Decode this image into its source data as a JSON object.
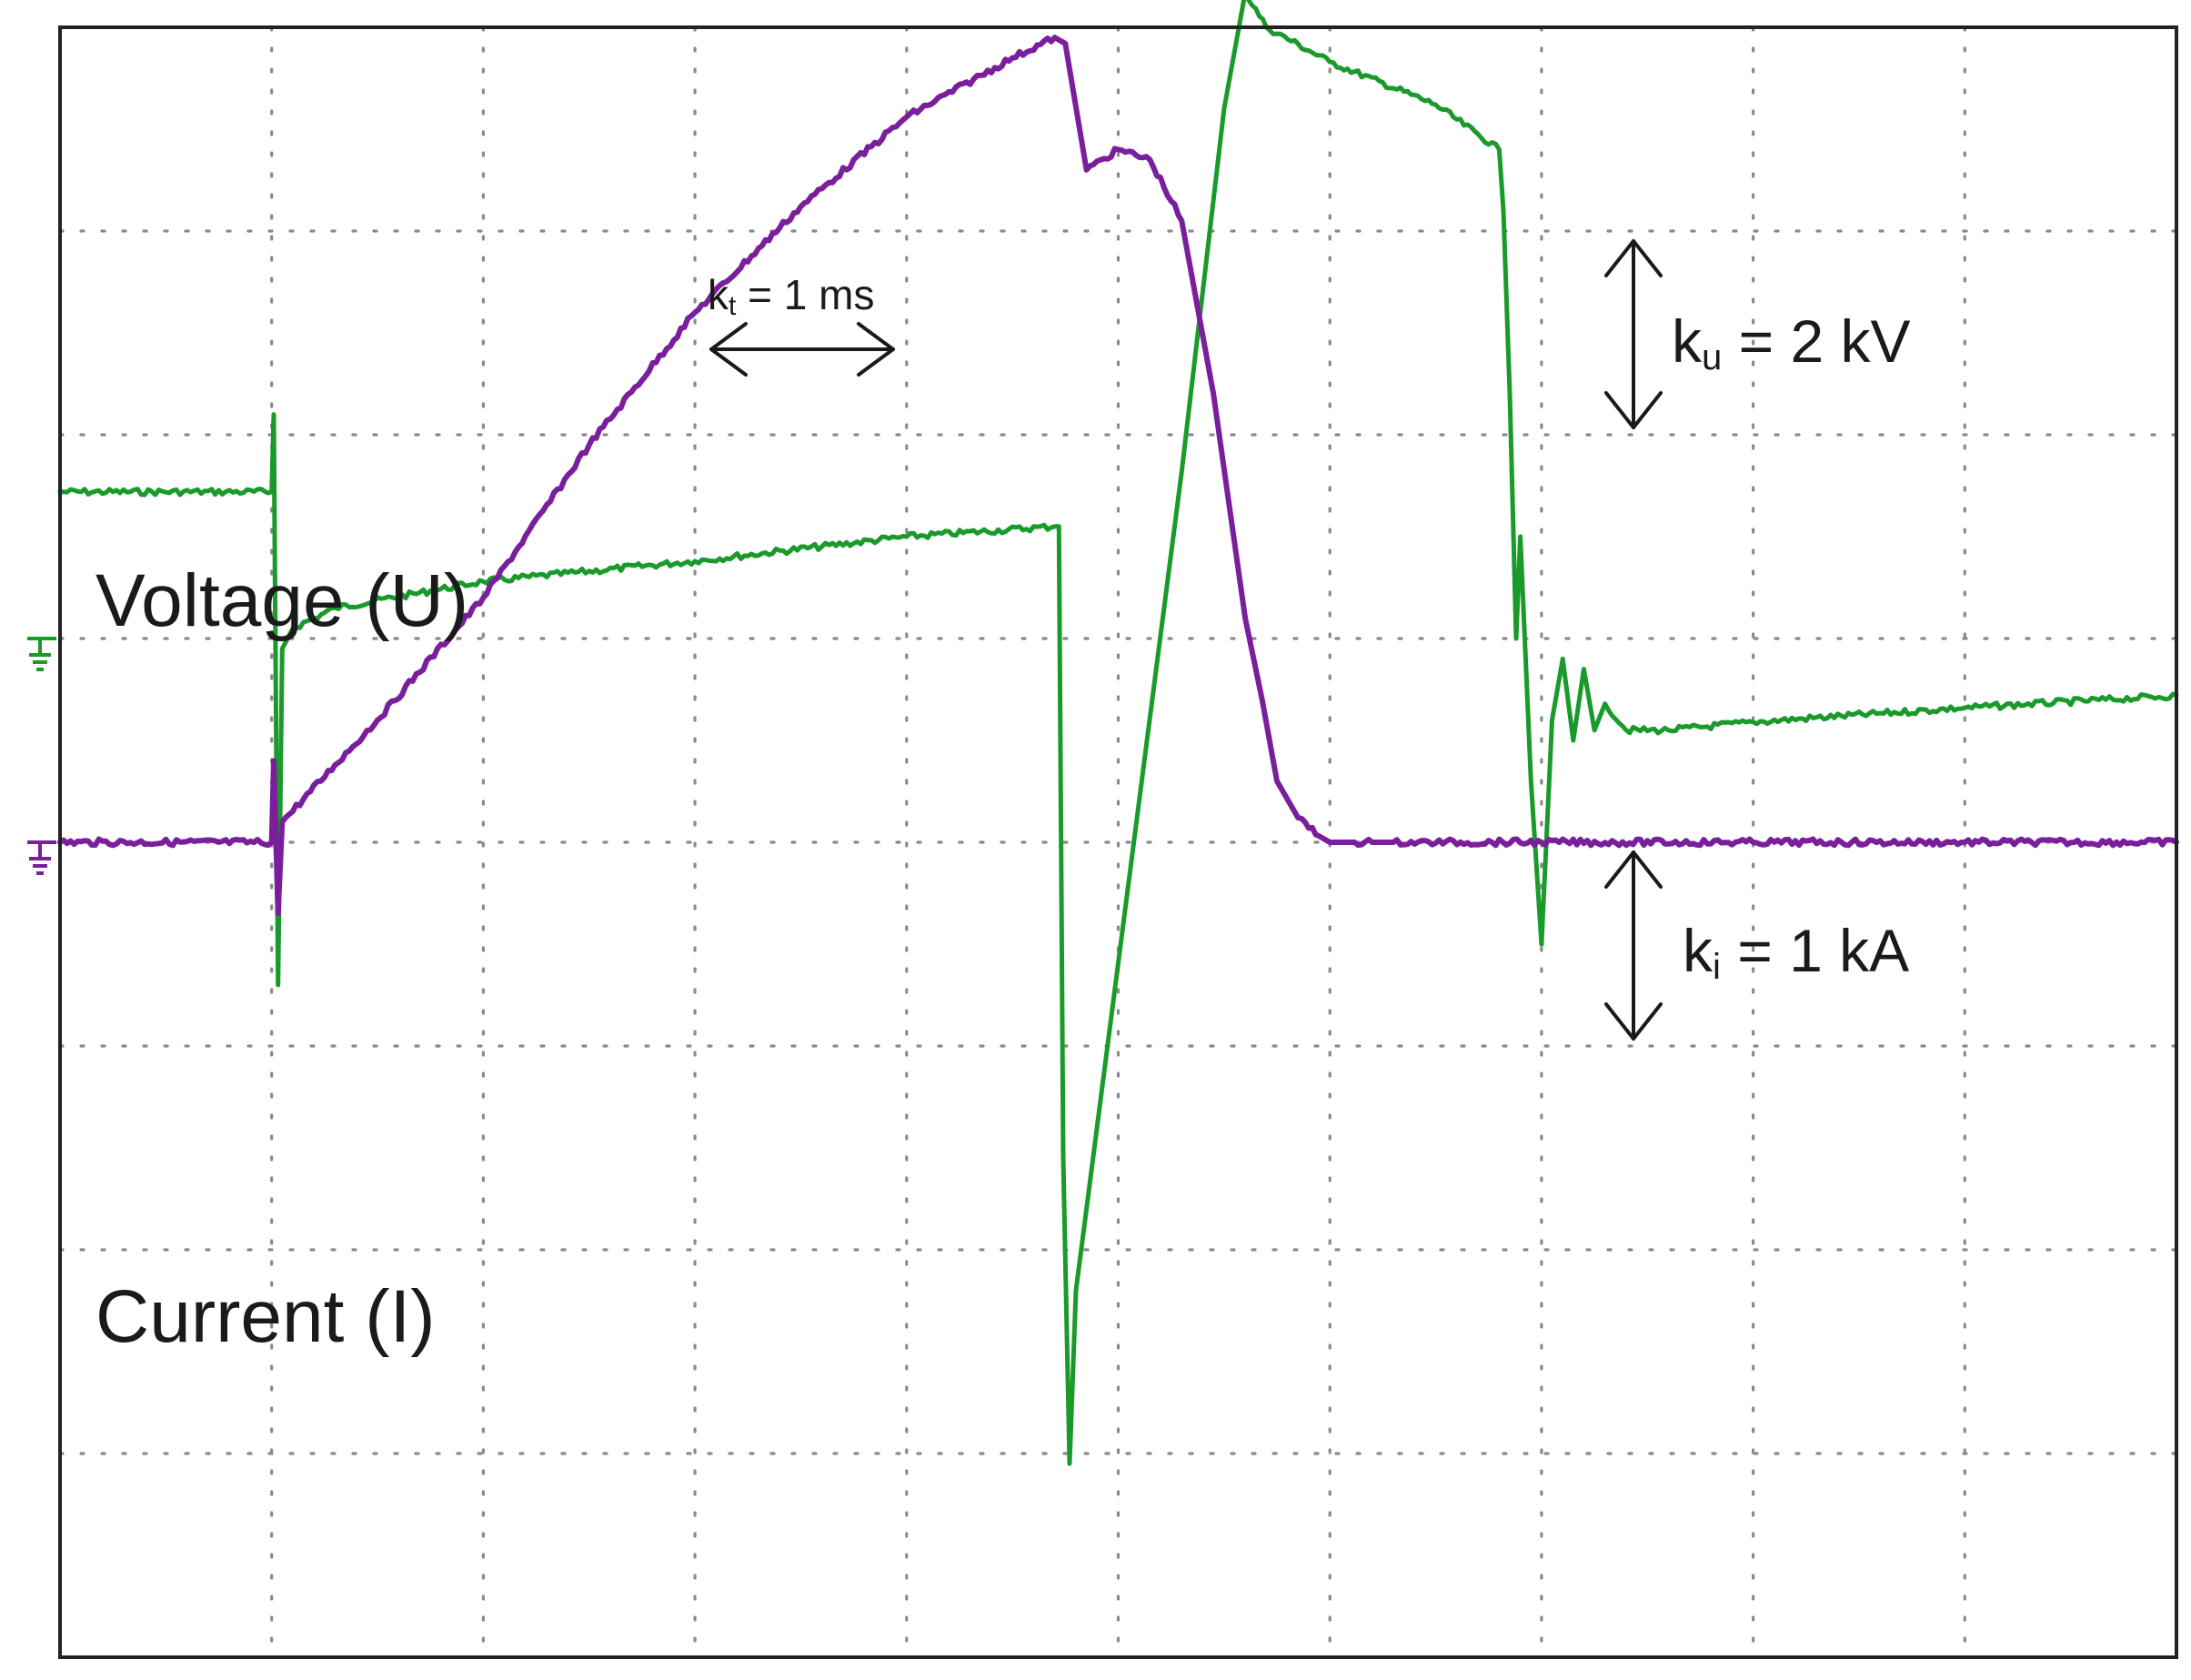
{
  "chart_data": {
    "type": "line",
    "title": "",
    "xlabel": "",
    "ylabel": "",
    "grid": true,
    "x_divisions": 10,
    "y_divisions": 8,
    "xlim": [
      0,
      10
    ],
    "ylim": [
      -4,
      4
    ],
    "colors": {
      "voltage": "#1a9a2a",
      "current": "#7a1f9c",
      "grid": "#8a8a8a",
      "frame": "#222222",
      "annotation": "#1a1a1a"
    },
    "annotations": {
      "time_scale": {
        "prefix": "k",
        "sub": "t",
        "rest": " = 1 ms"
      },
      "voltage_scale": {
        "prefix": "k",
        "sub": "u",
        "rest": " = 2 kV"
      },
      "current_scale": {
        "prefix": "k",
        "sub": "i",
        "rest": " = 1 kA"
      }
    },
    "series": [
      {
        "name": "Voltage (U)",
        "color": "#1a9a2a",
        "ground_level_div": 1.0,
        "x": [
          0,
          1.0,
          1.01,
          1.03,
          1.05,
          1.1,
          1.3,
          2.0,
          3.0,
          4.0,
          4.7,
          4.72,
          4.74,
          4.77,
          4.8,
          5.3,
          5.5,
          5.6,
          5.7,
          6.0,
          6.5,
          6.8,
          6.82,
          6.85,
          6.88,
          6.9,
          6.95,
          7.0,
          7.05,
          7.1,
          7.15,
          7.2,
          7.25,
          7.3,
          7.4,
          7.6,
          8.0,
          9.0,
          10.0
        ],
        "y": [
          1.72,
          1.72,
          2.1,
          -0.7,
          0.95,
          1.05,
          1.15,
          1.28,
          1.38,
          1.5,
          1.55,
          1.55,
          -1.55,
          -3.05,
          -2.2,
          1.82,
          3.6,
          4.17,
          4.0,
          3.83,
          3.62,
          3.4,
          3.1,
          2.2,
          1.0,
          1.5,
          0.3,
          -0.5,
          0.6,
          0.9,
          0.5,
          0.85,
          0.55,
          0.68,
          0.55,
          0.55,
          0.59,
          0.66,
          0.72
        ]
      },
      {
        "name": "Current (I)",
        "color": "#7a1f9c",
        "ground_level_div": 0.0,
        "x": [
          0,
          1.0,
          1.01,
          1.03,
          1.05,
          1.3,
          1.5,
          2.0,
          2.5,
          3.0,
          3.5,
          4.0,
          4.5,
          4.7,
          4.75,
          4.85,
          5.0,
          5.15,
          5.3,
          5.45,
          5.6,
          5.68,
          5.75,
          5.85,
          5.95,
          6.0,
          6.1,
          6.2,
          6.3,
          7.0,
          8.0,
          9.0,
          10.0
        ],
        "y": [
          0.0,
          0.0,
          0.4,
          -0.35,
          0.1,
          0.38,
          0.6,
          1.2,
          1.95,
          2.6,
          3.12,
          3.56,
          3.85,
          3.95,
          3.92,
          3.3,
          3.4,
          3.35,
          3.05,
          2.2,
          1.1,
          0.7,
          0.3,
          0.12,
          0.03,
          0.0,
          0.0,
          0.0,
          0.0,
          0.0,
          0.0,
          0.0,
          0.0
        ]
      }
    ]
  }
}
